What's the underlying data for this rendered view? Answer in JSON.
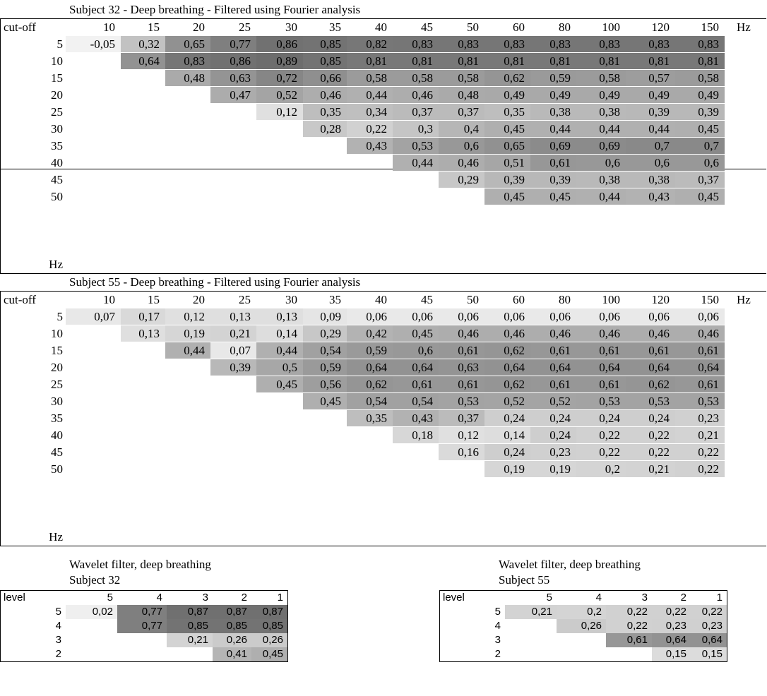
{
  "table1": {
    "caption": "Subject 32 - Deep breathing - Filtered using Fourier analysis",
    "corner_label": "cut-off",
    "unit_label": "Hz",
    "columns": [
      "10",
      "15",
      "20",
      "25",
      "30",
      "35",
      "40",
      "45",
      "50",
      "60",
      "80",
      "100",
      "120",
      "150"
    ],
    "rows": [
      {
        "label": "5",
        "cells": [
          "-0,05",
          "0,32",
          "0,65",
          "0,77",
          "0,86",
          "0,85",
          "0,82",
          "0,83",
          "0,83",
          "0,83",
          "0,83",
          "0,83",
          "0,83",
          "0,83"
        ]
      },
      {
        "label": "10",
        "cells": [
          "",
          "0,64",
          "0,83",
          "0,86",
          "0,89",
          "0,85",
          "0,81",
          "0,81",
          "0,81",
          "0,81",
          "0,81",
          "0,81",
          "0,81",
          "0,81"
        ]
      },
      {
        "label": "15",
        "cells": [
          "",
          "",
          "0,48",
          "0,63",
          "0,72",
          "0,66",
          "0,58",
          "0,58",
          "0,58",
          "0,62",
          "0,59",
          "0,58",
          "0,57",
          "0,58"
        ]
      },
      {
        "label": "20",
        "cells": [
          "",
          "",
          "",
          "0,47",
          "0,52",
          "0,46",
          "0,44",
          "0,46",
          "0,48",
          "0,49",
          "0,49",
          "0,49",
          "0,49",
          "0,49"
        ]
      },
      {
        "label": "25",
        "cells": [
          "",
          "",
          "",
          "",
          "0,12",
          "0,35",
          "0,34",
          "0,37",
          "0,37",
          "0,35",
          "0,38",
          "0,38",
          "0,39",
          "0,39"
        ]
      },
      {
        "label": "30",
        "cells": [
          "",
          "",
          "",
          "",
          "",
          "0,28",
          "0,22",
          "0,3",
          "0,4",
          "0,45",
          "0,44",
          "0,44",
          "0,44",
          "0,45"
        ]
      },
      {
        "label": "35",
        "cells": [
          "",
          "",
          "",
          "",
          "",
          "",
          "0,43",
          "0,53",
          "0,6",
          "0,65",
          "0,69",
          "0,69",
          "0,7",
          "0,7"
        ]
      },
      {
        "label": "40",
        "cells": [
          "",
          "",
          "",
          "",
          "",
          "",
          "",
          "0,44",
          "0,46",
          "0,51",
          "0,61",
          "0,6",
          "0,6",
          "0,6"
        ]
      },
      {
        "label": "45",
        "cells": [
          "",
          "",
          "",
          "",
          "",
          "",
          "",
          "",
          "0,29",
          "0,39",
          "0,39",
          "0,38",
          "0,38",
          "0,37"
        ]
      },
      {
        "label": "50",
        "cells": [
          "",
          "",
          "",
          "",
          "",
          "",
          "",
          "",
          "",
          "0,45",
          "0,45",
          "0,44",
          "0,43",
          "0,45"
        ]
      }
    ],
    "bottom_unit": "Hz"
  },
  "table2": {
    "caption": "Subject 55 - Deep breathing - Filtered using Fourier analysis",
    "corner_label": "cut-off",
    "unit_label": "Hz",
    "columns": [
      "10",
      "15",
      "20",
      "25",
      "30",
      "35",
      "40",
      "45",
      "50",
      "60",
      "80",
      "100",
      "120",
      "150"
    ],
    "rows": [
      {
        "label": "5",
        "cells": [
          "0,07",
          "0,17",
          "0,12",
          "0,13",
          "0,13",
          "0,09",
          "0,06",
          "0,06",
          "0,06",
          "0,06",
          "0,06",
          "0,06",
          "0,06",
          "0,06"
        ]
      },
      {
        "label": "10",
        "cells": [
          "",
          "0,13",
          "0,19",
          "0,21",
          "0,14",
          "0,29",
          "0,42",
          "0,45",
          "0,46",
          "0,46",
          "0,46",
          "0,46",
          "0,46",
          "0,46"
        ]
      },
      {
        "label": "15",
        "cells": [
          "",
          "",
          "0,44",
          "0,07",
          "0,44",
          "0,54",
          "0,59",
          "0,6",
          "0,61",
          "0,62",
          "0,61",
          "0,61",
          "0,61",
          "0,61"
        ]
      },
      {
        "label": "20",
        "cells": [
          "",
          "",
          "",
          "0,39",
          "0,5",
          "0,59",
          "0,64",
          "0,64",
          "0,63",
          "0,64",
          "0,64",
          "0,64",
          "0,64",
          "0,64"
        ]
      },
      {
        "label": "25",
        "cells": [
          "",
          "",
          "",
          "",
          "0,45",
          "0,56",
          "0,62",
          "0,61",
          "0,61",
          "0,62",
          "0,61",
          "0,61",
          "0,62",
          "0,61"
        ]
      },
      {
        "label": "30",
        "cells": [
          "",
          "",
          "",
          "",
          "",
          "0,45",
          "0,54",
          "0,54",
          "0,53",
          "0,52",
          "0,52",
          "0,53",
          "0,53",
          "0,53"
        ]
      },
      {
        "label": "35",
        "cells": [
          "",
          "",
          "",
          "",
          "",
          "",
          "0,35",
          "0,43",
          "0,37",
          "0,24",
          "0,24",
          "0,24",
          "0,24",
          "0,23"
        ]
      },
      {
        "label": "40",
        "cells": [
          "",
          "",
          "",
          "",
          "",
          "",
          "",
          "0,18",
          "0,12",
          "0,14",
          "0,24",
          "0,22",
          "0,22",
          "0,21"
        ]
      },
      {
        "label": "45",
        "cells": [
          "",
          "",
          "",
          "",
          "",
          "",
          "",
          "",
          "0,16",
          "0,24",
          "0,23",
          "0,22",
          "0,22",
          "0,22"
        ]
      },
      {
        "label": "50",
        "cells": [
          "",
          "",
          "",
          "",
          "",
          "",
          "",
          "",
          "",
          "0,19",
          "0,19",
          "0,2",
          "0,21",
          "0,22"
        ]
      }
    ],
    "bottom_unit": "Hz"
  },
  "wavelet1": {
    "caption_line1": "Wavelet filter, deep breathing",
    "caption_line2": "Subject 32",
    "corner_label": "level",
    "columns": [
      "5",
      "4",
      "3",
      "2",
      "1"
    ],
    "rows": [
      {
        "label": "5",
        "cells": [
          "0,02",
          "0,77",
          "0,87",
          "0,87",
          "0,87"
        ]
      },
      {
        "label": "4",
        "cells": [
          "",
          "0,77",
          "0,85",
          "0,85",
          "0,85"
        ]
      },
      {
        "label": "3",
        "cells": [
          "",
          "",
          "0,21",
          "0,26",
          "0,26"
        ]
      },
      {
        "label": "2",
        "cells": [
          "",
          "",
          "",
          "0,41",
          "0,45"
        ]
      }
    ]
  },
  "wavelet2": {
    "caption_line1": "Wavelet filter, deep breathing",
    "caption_line2": "Subject 55",
    "corner_label": "level",
    "columns": [
      "5",
      "4",
      "3",
      "2",
      "1"
    ],
    "rows": [
      {
        "label": "5",
        "cells": [
          "0,21",
          "0,2",
          "0,22",
          "0,22",
          "0,22"
        ]
      },
      {
        "label": "4",
        "cells": [
          "",
          "0,26",
          "0,22",
          "0,23",
          "0,23"
        ]
      },
      {
        "label": "3",
        "cells": [
          "",
          "",
          "0,61",
          "0,64",
          "0,64"
        ]
      },
      {
        "label": "2",
        "cells": [
          "",
          "",
          "",
          "0,15",
          "0,15"
        ]
      }
    ]
  }
}
